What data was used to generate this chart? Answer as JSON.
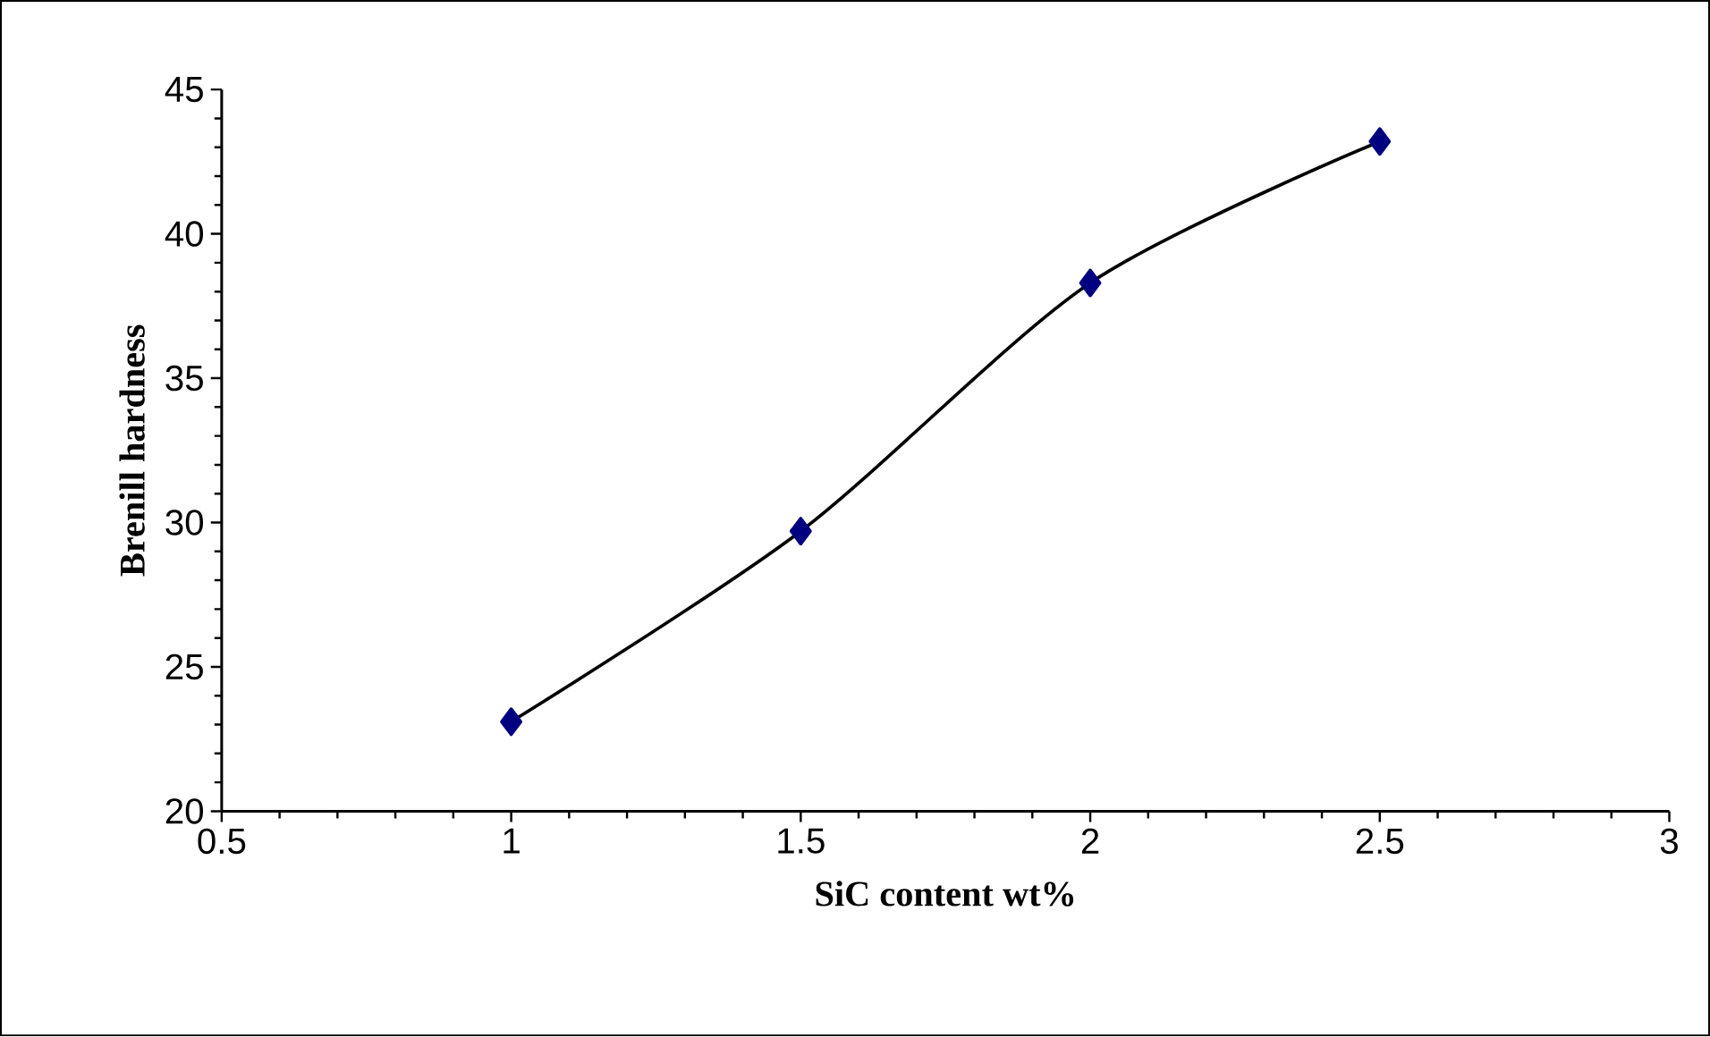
{
  "chart_data": {
    "type": "line",
    "xlabel": "SiC content wt%",
    "ylabel": "Brenill hardness",
    "x": [
      1,
      1.5,
      2,
      2.5
    ],
    "series": [
      {
        "color": "#000080",
        "values": [
          23.1,
          29.7,
          38.3,
          43.2
        ]
      }
    ],
    "xlim": [
      0.5,
      3
    ],
    "xticks": [
      0.5,
      1,
      1.5,
      2,
      2.5,
      3
    ],
    "ylim": [
      20,
      45
    ],
    "yticks": [
      20,
      25,
      30,
      35,
      40,
      45
    ],
    "marker": "diamond",
    "line_style": "solid",
    "grid": false
  }
}
